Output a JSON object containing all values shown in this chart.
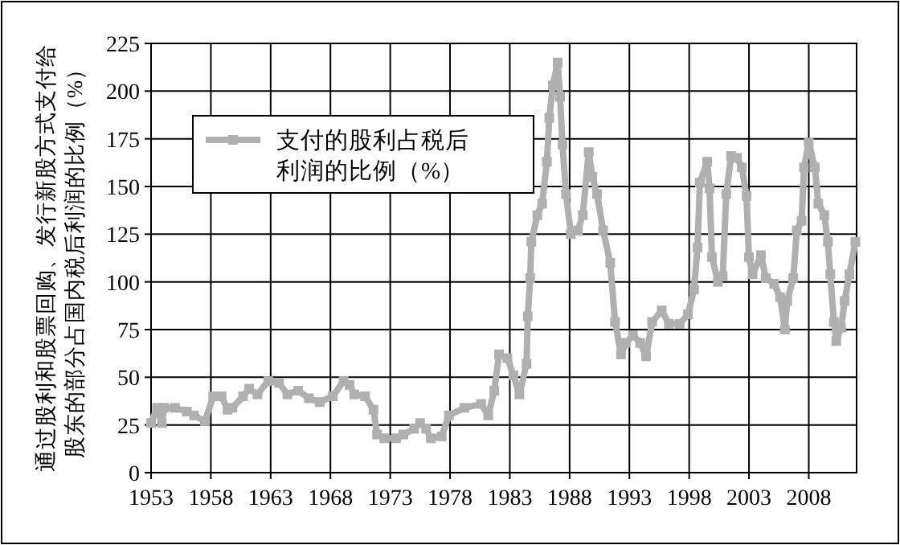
{
  "chart_data": {
    "type": "line",
    "ylabel": "通过股利和股票回购、发行新股方式支付给股东的部分占国内税后利润的比例（%）",
    "xlim": [
      1953,
      2012
    ],
    "xticks": [
      1953,
      1958,
      1963,
      1968,
      1973,
      1978,
      1983,
      1988,
      1993,
      1998,
      2003,
      2008
    ],
    "ylim": [
      0,
      225
    ],
    "yticks": [
      0,
      25,
      50,
      75,
      100,
      125,
      150,
      175,
      200,
      225
    ],
    "grid": true,
    "legend": "top left",
    "marker": "square",
    "line_style": "solid",
    "series": [
      {
        "name": "支付的股利占税后利润的比例（%）",
        "color": "#b0b0b0",
        "x": [
          1953.0,
          1953.5,
          1953.9,
          1954.1,
          1955.0,
          1956.0,
          1956.6,
          1957.5,
          1958.2,
          1958.9,
          1959.4,
          1959.8,
          1960.7,
          1961.2,
          1961.9,
          1962.8,
          1963.7,
          1964.4,
          1965.3,
          1966.2,
          1967.1,
          1968.2,
          1969.1,
          1969.6,
          1970.0,
          1970.9,
          1971.6,
          1971.9,
          1972.5,
          1973.5,
          1974.1,
          1975.0,
          1975.5,
          1976.0,
          1976.4,
          1977.3,
          1977.9,
          1979.2,
          1980.6,
          1981.2,
          1981.7,
          1982.1,
          1982.8,
          1983.3,
          1983.8,
          1984.4,
          1984.5,
          1984.7,
          1984.8,
          1985.3,
          1985.7,
          1986.1,
          1986.3,
          1986.6,
          1987.0,
          1987.2,
          1987.4,
          1987.7,
          1988.1,
          1988.7,
          1989.1,
          1989.6,
          1989.9,
          1990.3,
          1990.8,
          1991.4,
          1991.8,
          1992.3,
          1992.7,
          1993.3,
          1993.9,
          1994.4,
          1994.9,
          1995.7,
          1996.3,
          1997.2,
          1997.9,
          1998.4,
          1998.7,
          1998.9,
          1999.5,
          1999.7,
          1999.9,
          2000.4,
          2000.8,
          2001.1,
          2001.5,
          2002.0,
          2002.4,
          2002.8,
          2003.0,
          2003.3,
          2004.0,
          2004.4,
          2005.1,
          2005.6,
          2006.0,
          2006.2,
          2006.7,
          2007.0,
          2007.4,
          2007.6,
          2008.0,
          2008.5,
          2008.8,
          2009.3,
          2009.6,
          2009.8,
          2010.1,
          2010.3,
          2010.7,
          2011.0,
          2011.4,
          2011.9
        ],
        "values": [
          26,
          34,
          26,
          34,
          34,
          32,
          30,
          27,
          40,
          40,
          33,
          34,
          40,
          44,
          41,
          48,
          47,
          41,
          43,
          39,
          37,
          40,
          48,
          46,
          41,
          40,
          33,
          20,
          18,
          18,
          20,
          23,
          26,
          23,
          18,
          19,
          30,
          34,
          36,
          30,
          43,
          62,
          60,
          51,
          41,
          57,
          82,
          102,
          121,
          135,
          141,
          163,
          186,
          203,
          215,
          197,
          172,
          146,
          125,
          127,
          135,
          168,
          155,
          146,
          127,
          110,
          79,
          62,
          68,
          72,
          68,
          61,
          79,
          85,
          78,
          78,
          83,
          96,
          118,
          152,
          163,
          149,
          113,
          100,
          103,
          146,
          166,
          165,
          160,
          145,
          113,
          104,
          114,
          102,
          99,
          92,
          75,
          90,
          102,
          127,
          132,
          160,
          173,
          160,
          141,
          135,
          121,
          104,
          79,
          69,
          76,
          90,
          104,
          121
        ]
      }
    ]
  }
}
